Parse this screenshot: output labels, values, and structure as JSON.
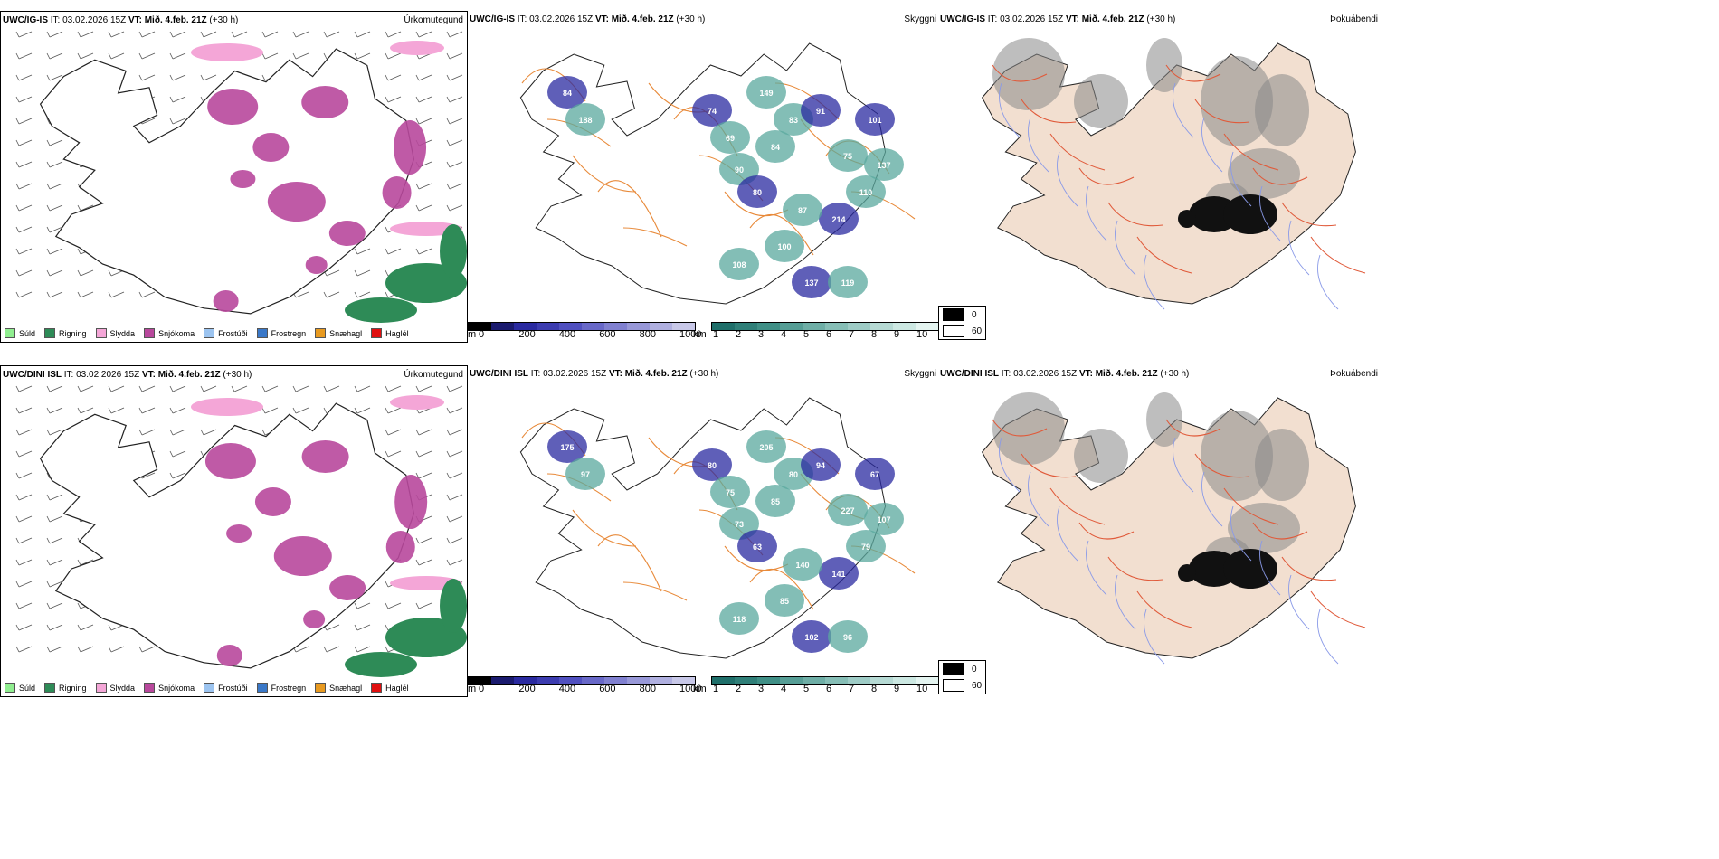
{
  "rows": [
    {
      "model_bold": "UWC/IG-IS",
      "it_text": " IT: 03.02.2026 15Z ",
      "vt_bold": "VT: Mið. 4.feb. 21Z",
      "vt_suffix": " (+30 h)",
      "precip_var": "Úrkomutegund",
      "cloud_var": "Skyggni",
      "fog_var": "Þokuábendi",
      "cloud_labels": [
        "74",
        "69",
        "90",
        "80",
        "84",
        "83",
        "91",
        "75",
        "110",
        "214",
        "87",
        "100",
        "101",
        "137",
        "149",
        "84",
        "188",
        "108",
        "137",
        "119"
      ]
    },
    {
      "model_bold": "UWC/DINI ISL",
      "it_text": " IT: 03.02.2026 15Z ",
      "vt_bold": "VT: Mið. 4.feb. 21Z",
      "vt_suffix": " (+30 h)",
      "precip_var": "Úrkomutegund",
      "cloud_var": "Skyggni",
      "fog_var": "Þokuábendi",
      "cloud_labels": [
        "80",
        "75",
        "73",
        "63",
        "85",
        "80",
        "94",
        "227",
        "79",
        "141",
        "140",
        "85",
        "67",
        "107",
        "205",
        "175",
        "97",
        "118",
        "102",
        "96"
      ]
    }
  ],
  "precip_legend": [
    {
      "label": "Súld",
      "color": "#90ee90"
    },
    {
      "label": "Rigning",
      "color": "#2e8b57"
    },
    {
      "label": "Slydda",
      "color": "#f4a6d7"
    },
    {
      "label": "Snjókoma",
      "color": "#b8489c"
    },
    {
      "label": "Frostúði",
      "color": "#9cc4f0"
    },
    {
      "label": "Frostregn",
      "color": "#3a78c8"
    },
    {
      "label": "Snæhagl",
      "color": "#e89a20"
    },
    {
      "label": "Haglél",
      "color": "#e01010"
    }
  ],
  "cloudbase_bar": {
    "unit": "m",
    "ticks": [
      "0",
      "200",
      "400",
      "600",
      "800",
      "1000"
    ],
    "colors": [
      "#000000",
      "#1a1a6e",
      "#2a2aa0",
      "#3c3cb0",
      "#5050c0",
      "#6868c8",
      "#8080d0",
      "#9898d8",
      "#b0b0e0",
      "#c8c8e8"
    ]
  },
  "visibility_bar": {
    "unit": "km",
    "ticks": [
      "1",
      "2",
      "3",
      "4",
      "5",
      "6",
      "7",
      "8",
      "9",
      "10"
    ],
    "colors": [
      "#1f6f6a",
      "#2f7f78",
      "#3f8f86",
      "#569e96",
      "#6eaea6",
      "#86beb6",
      "#9eccc6",
      "#b6dad4",
      "#cce8e2",
      "#e4f4f0"
    ]
  },
  "fog_legend": [
    {
      "label": "0",
      "color": "#000000"
    },
    {
      "label": "60",
      "color": "#ffffff"
    }
  ],
  "colors": {
    "coast": "#222222",
    "road": "#e88a3a",
    "fog_land": "#f2dfd0",
    "fog_road": "#e05a3a",
    "river": "#8a9ae8"
  }
}
